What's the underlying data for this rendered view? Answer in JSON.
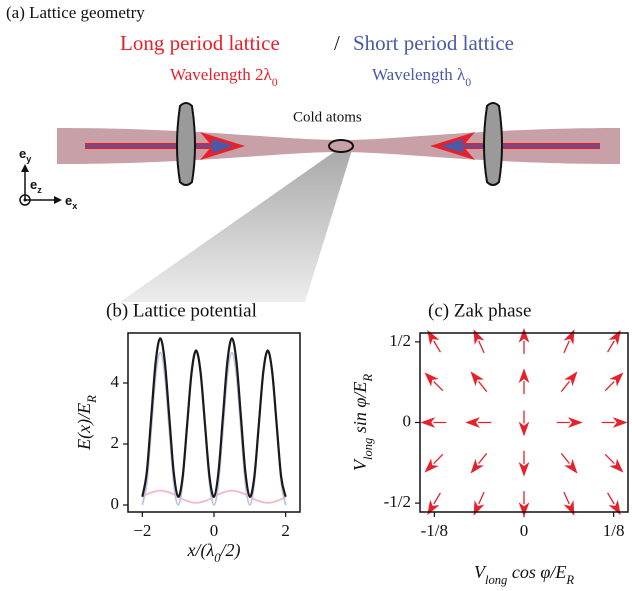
{
  "diagram": {
    "title": "(a) Lattice geometry",
    "long_label": "Long period lattice",
    "separator": "/",
    "short_label": "Short period lattice",
    "long_wavelength": [
      "Wavelength 2λ",
      "0"
    ],
    "short_wavelength": [
      "Wavelength λ",
      "0"
    ],
    "atoms_label": "Cold atoms",
    "axes": {
      "y": [
        "e",
        "y"
      ],
      "z": [
        "e",
        "z"
      ],
      "x": [
        "e",
        "x"
      ]
    }
  },
  "chart_data": [
    {
      "type": "line",
      "title": "(b) Lattice potential",
      "xlabel": [
        "x/(λ",
        "0",
        "/2)"
      ],
      "ylabel": [
        "E(x)/E",
        "R"
      ],
      "x": [
        -2,
        -1.875,
        -1.75,
        -1.625,
        -1.5,
        -1.375,
        -1.25,
        -1.125,
        -1,
        -0.875,
        -0.75,
        -0.625,
        -0.5,
        -0.375,
        -0.25,
        -0.125,
        0,
        0.125,
        0.25,
        0.375,
        0.5,
        0.625,
        0.75,
        0.875,
        1,
        1.125,
        1.25,
        1.375,
        1.5,
        1.625,
        1.75,
        1.875,
        2
      ],
      "series": [
        {
          "color": "#f5b8c2",
          "values": [
            0.27,
            0.35,
            0.41,
            0.45,
            0.47,
            0.45,
            0.41,
            0.35,
            0.27,
            0.19,
            0.13,
            0.09,
            0.07,
            0.09,
            0.13,
            0.19,
            0.27,
            0.35,
            0.41,
            0.45,
            0.47,
            0.45,
            0.41,
            0.35,
            0.27,
            0.19,
            0.13,
            0.09,
            0.07,
            0.09,
            0.13,
            0.19,
            0.27
          ]
        },
        {
          "color": "#bcc0e2",
          "values": [
            0,
            0.73,
            2.5,
            4.27,
            5,
            4.27,
            2.5,
            0.73,
            0,
            0.73,
            2.5,
            4.27,
            5,
            4.27,
            2.5,
            0.73,
            0,
            0.73,
            2.5,
            4.27,
            5,
            4.27,
            2.5,
            0.73,
            0,
            0.73,
            2.5,
            4.27,
            5,
            4.27,
            2.5,
            0.73,
            0
          ]
        },
        {
          "color": "#1a1a1a",
          "values": [
            0.27,
            1.08,
            2.91,
            4.72,
            5.47,
            4.72,
            2.91,
            1.08,
            0.27,
            0.92,
            2.63,
            4.36,
            5.07,
            4.36,
            2.63,
            0.92,
            0.27,
            1.08,
            2.91,
            4.72,
            5.47,
            4.72,
            2.91,
            1.08,
            0.27,
            0.92,
            2.63,
            4.36,
            5.07,
            4.36,
            2.63,
            0.92,
            0.27
          ]
        }
      ],
      "xlim": [
        -2.4,
        2.4
      ],
      "xticks": [
        {
          "value": -2,
          "label": "−2"
        },
        0,
        2
      ],
      "ylim": [
        -0.23,
        5.64
      ],
      "yticks": [
        0,
        2,
        4
      ]
    },
    {
      "type": "quiver",
      "title": "(c) Zak phase",
      "xlabel": [
        "V",
        "long",
        " cos φ/E",
        "R"
      ],
      "ylabel": [
        "V",
        "long",
        " sin φ/E",
        "R"
      ],
      "color": "#e8202a",
      "x": [
        -0.125,
        -0.0625,
        0,
        0.0625,
        0.125,
        -0.125,
        -0.0625,
        0,
        0.0625,
        0.125,
        -0.125,
        -0.0625,
        0,
        0.0625,
        0.125,
        -0.125,
        -0.0625,
        0,
        0.0625,
        0.125,
        -0.125,
        -0.0625,
        0,
        0.0625,
        0.125
      ],
      "y": [
        0.5,
        0.5,
        0.5,
        0.5,
        0.5,
        0.25,
        0.25,
        0.25,
        0.25,
        0.25,
        0,
        0,
        0,
        0,
        0,
        -0.25,
        -0.25,
        -0.25,
        -0.25,
        -0.25,
        -0.5,
        -0.5,
        -0.5,
        -0.5,
        -0.5
      ],
      "u": [
        -0.5,
        -0.4,
        0,
        0.4,
        0.5,
        -0.7,
        -0.6,
        0,
        0.6,
        0.7,
        -1,
        -1,
        0,
        1,
        1,
        -0.7,
        -0.6,
        0,
        0.6,
        0.7,
        -0.5,
        -0.4,
        0,
        0.4,
        0.5
      ],
      "v": [
        0.85,
        0.9,
        1,
        0.9,
        0.85,
        0.7,
        0.75,
        1,
        0.75,
        0.7,
        0,
        0,
        -1,
        0,
        0,
        -0.7,
        -0.75,
        -1,
        -0.75,
        -0.7,
        -0.85,
        -0.9,
        -1,
        -0.9,
        -0.85
      ],
      "xlim": [
        -0.145,
        0.145
      ],
      "xticks": [
        {
          "value": -0.125,
          "label": "-1/8"
        },
        0,
        {
          "value": 0.125,
          "label": "1/8"
        }
      ],
      "ylim": [
        -0.555,
        0.555
      ],
      "yticks": [
        {
          "value": -0.5,
          "label": "-1/2"
        },
        0,
        {
          "value": 0.5,
          "label": "1/2"
        }
      ]
    }
  ]
}
